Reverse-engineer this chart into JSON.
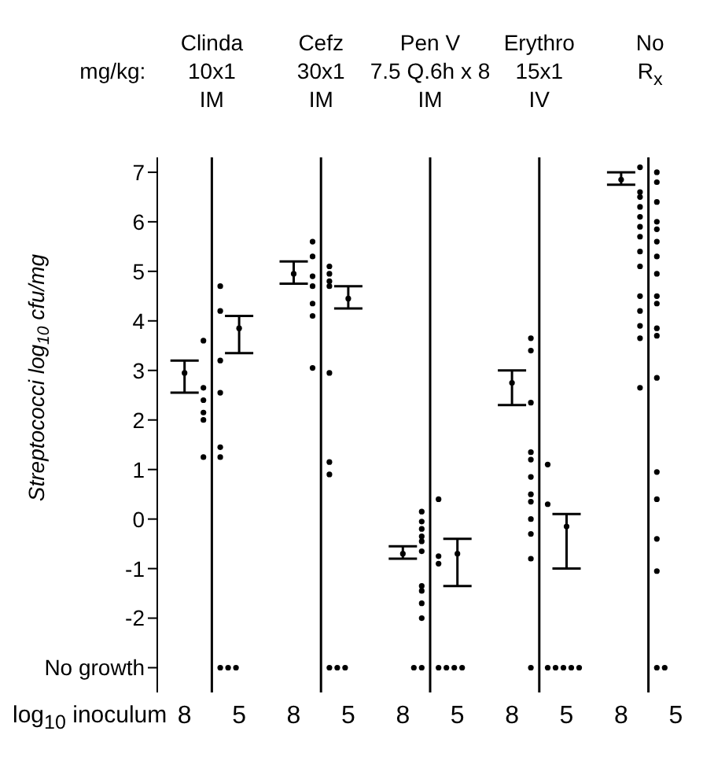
{
  "chart_data": {
    "type": "scatter",
    "ylabel": "Streptococci log$_{10}$ cfu/mg",
    "xlabel": "log$_{10}$ inoculum",
    "annotations": [
      "mg/kg:",
      "Clinda\n10x1\nIM",
      "Cefz\n30x1\nIM",
      "Pen V\n7.5 Q.6h x 8\nIM",
      "Erythro\n15x1\nIV",
      "No\nR$_{x}$"
    ],
    "categories": [
      "8",
      "5",
      "8",
      "5",
      "8",
      "5",
      "8",
      "5",
      "8",
      "5"
    ],
    "ylim": [
      -3.5,
      7.3
    ],
    "yticks": [
      {
        "value": -3,
        "label": "No growth"
      },
      -2,
      -1,
      0,
      1,
      2,
      3,
      4,
      5,
      6,
      7
    ],
    "grid": false,
    "legend": false,
    "marker": "circle",
    "series": [
      {
        "color": "#000000",
        "values": [
          3.6,
          4.7,
          5.6,
          5.1,
          0.15,
          0.4,
          3.65,
          1.1,
          7.1,
          7.0
        ]
      },
      {
        "color": "#000000",
        "values": [
          2.65,
          4.2,
          5.3,
          4.95,
          -0.05,
          -0.75,
          3.4,
          0.3,
          6.6,
          6.8
        ]
      },
      {
        "color": "#000000",
        "values": [
          2.4,
          3.2,
          4.9,
          4.8,
          -0.2,
          -0.9,
          2.35,
          null,
          6.5,
          6.4
        ]
      },
      {
        "color": "#000000",
        "values": [
          2.15,
          2.55,
          4.7,
          4.7,
          -0.35,
          null,
          1.35,
          null,
          6.3,
          6.0
        ]
      },
      {
        "color": "#000000",
        "values": [
          2.0,
          1.45,
          4.35,
          2.95,
          -0.45,
          null,
          1.2,
          null,
          6.1,
          5.85
        ]
      },
      {
        "color": "#000000",
        "values": [
          1.25,
          1.25,
          4.1,
          1.15,
          -0.65,
          null,
          0.85,
          null,
          5.9,
          5.6
        ]
      },
      {
        "color": "#000000",
        "values": [
          null,
          null,
          3.05,
          0.9,
          -1.35,
          null,
          0.5,
          null,
          5.7,
          5.3
        ]
      },
      {
        "color": "#000000",
        "values": [
          null,
          null,
          null,
          null,
          -1.45,
          null,
          0.35,
          null,
          5.4,
          4.95
        ]
      },
      {
        "color": "#000000",
        "values": [
          null,
          null,
          null,
          null,
          -1.7,
          null,
          0,
          null,
          5.1,
          4.5
        ]
      },
      {
        "color": "#000000",
        "values": [
          null,
          null,
          null,
          null,
          -2.0,
          null,
          -0.3,
          null,
          4.5,
          4.35
        ]
      },
      {
        "color": "#000000",
        "values": [
          null,
          null,
          null,
          null,
          null,
          null,
          -0.8,
          null,
          4.2,
          3.85
        ]
      },
      {
        "color": "#000000",
        "values": [
          null,
          null,
          null,
          null,
          null,
          null,
          null,
          null,
          3.9,
          3.7
        ]
      },
      {
        "color": "#000000",
        "values": [
          null,
          null,
          null,
          null,
          null,
          null,
          null,
          null,
          3.65,
          2.85
        ]
      },
      {
        "color": "#000000",
        "values": [
          null,
          null,
          null,
          null,
          null,
          null,
          null,
          null,
          2.65,
          0.95
        ]
      },
      {
        "color": "#000000",
        "values": [
          null,
          null,
          null,
          null,
          null,
          null,
          null,
          null,
          null,
          0.4
        ]
      },
      {
        "color": "#000000",
        "values": [
          null,
          null,
          null,
          null,
          null,
          null,
          null,
          null,
          null,
          -0.4
        ]
      },
      {
        "color": "#000000",
        "values": [
          null,
          null,
          null,
          null,
          null,
          null,
          null,
          null,
          null,
          -1.05
        ]
      },
      {
        "color": "#000000",
        "values": [
          null,
          -3,
          null,
          -3,
          -3,
          -3,
          -3,
          -3,
          null,
          -3
        ]
      },
      {
        "color": "#000000",
        "values": [
          null,
          -3,
          null,
          -3,
          -3,
          -3,
          null,
          -3,
          null,
          -3
        ]
      },
      {
        "color": "#000000",
        "values": [
          null,
          -3,
          null,
          -3,
          null,
          -3,
          null,
          -3,
          null,
          null
        ]
      },
      {
        "color": "#000000",
        "values": [
          null,
          null,
          null,
          null,
          null,
          -3,
          null,
          -3,
          null,
          null
        ]
      },
      {
        "color": "#000000",
        "values": [
          null,
          null,
          null,
          null,
          null,
          null,
          null,
          -3,
          null,
          null
        ]
      },
      {
        "color": "#000000",
        "values": [
          2.95,
          3.85,
          4.95,
          4.45,
          -0.7,
          -0.7,
          2.75,
          -0.15,
          6.85,
          null
        ],
        "errors": [
          [
            2.55,
            3.2
          ],
          [
            3.35,
            4.1
          ],
          [
            4.75,
            5.2
          ],
          [
            4.25,
            4.7
          ],
          [
            -0.8,
            -0.55
          ],
          [
            -1.35,
            -0.4
          ],
          [
            2.3,
            3.0
          ],
          [
            -1.0,
            0.1
          ],
          [
            6.75,
            7.0
          ],
          null
        ]
      }
    ]
  }
}
